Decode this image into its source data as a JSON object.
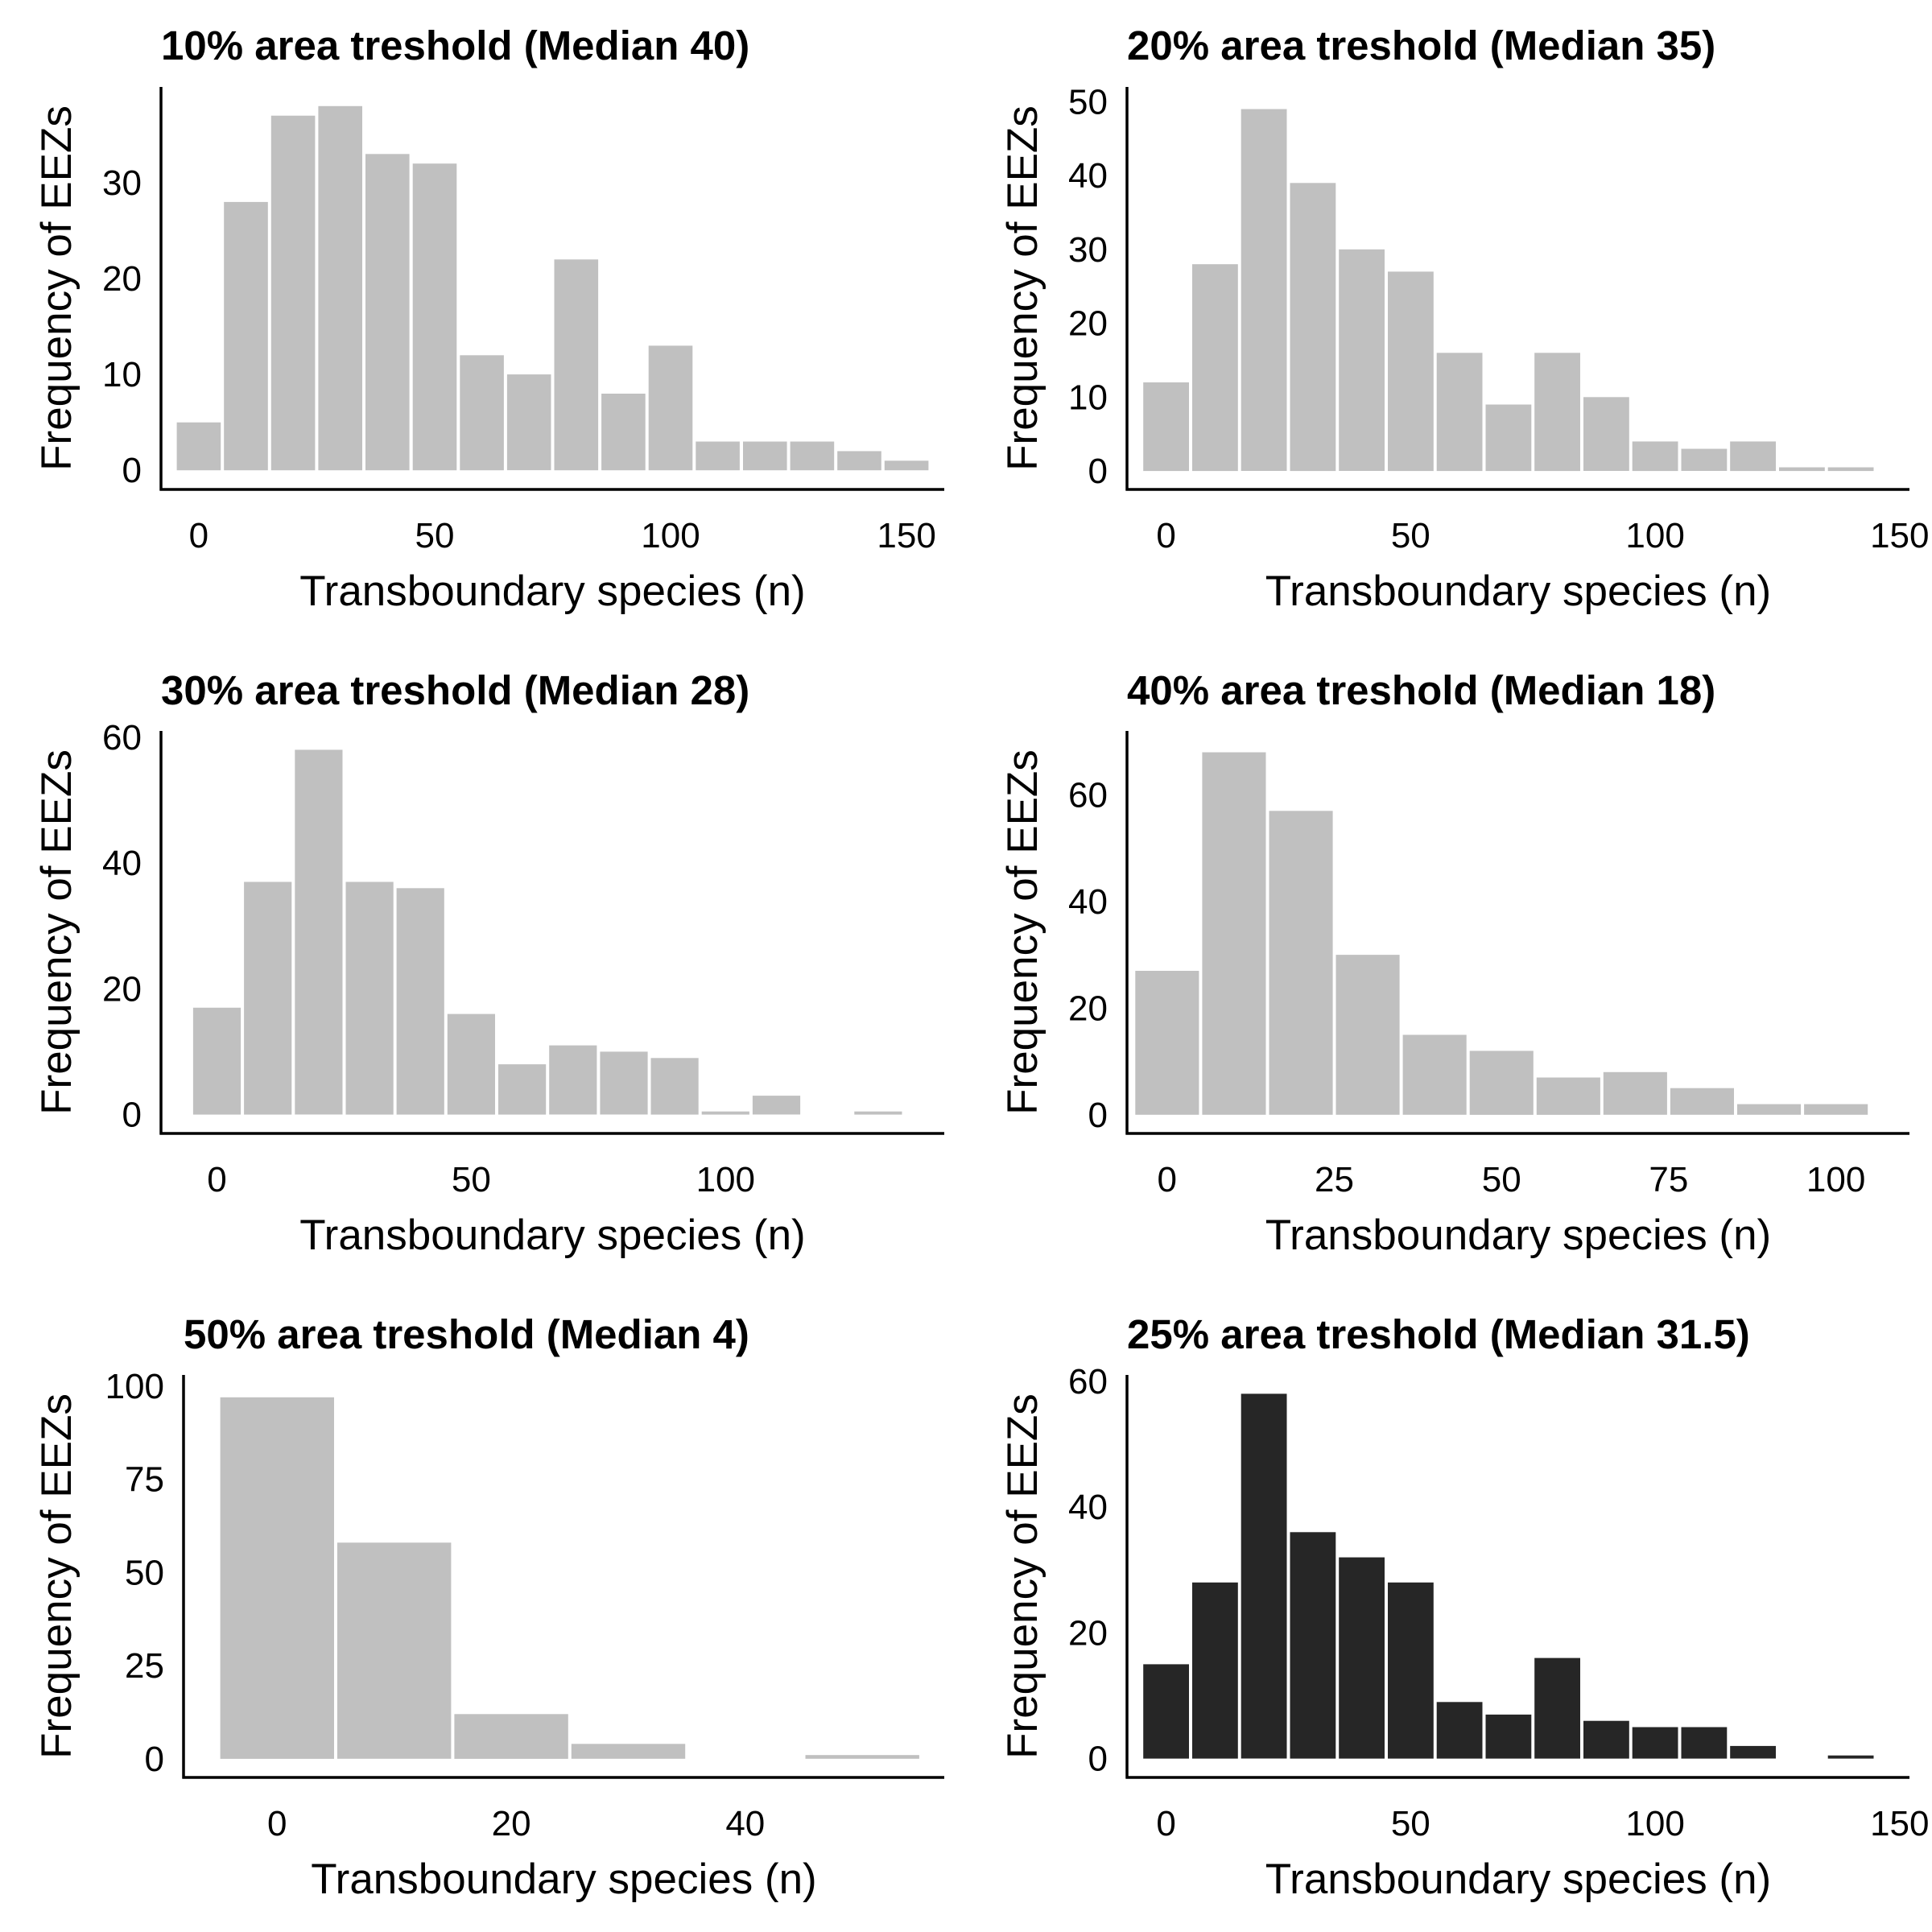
{
  "figure": {
    "colors": {
      "bar_default": "#c0c0c0",
      "bar_highlight": "#262626",
      "axis": "#000000",
      "background": "#ffffff"
    }
  },
  "chart_data": [
    {
      "type": "bar",
      "title": "10% area treshold (Median 40)",
      "xlabel": "Transboundary species (n)",
      "ylabel": "Frequency of EEZs",
      "bin_width": 10,
      "bin_centers": [
        0,
        10,
        20,
        30,
        40,
        50,
        60,
        70,
        80,
        90,
        100,
        110,
        120,
        130,
        140,
        150
      ],
      "values": [
        5,
        28,
        37,
        38,
        33,
        32,
        12,
        10,
        22,
        8,
        13,
        3,
        3,
        3,
        2,
        1
      ],
      "xticks": [
        0,
        50,
        100,
        150
      ],
      "yticks": [
        0,
        10,
        20,
        30
      ],
      "xlim": [
        -8,
        158
      ],
      "ylim": [
        -2,
        40
      ],
      "color": "#c0c0c0"
    },
    {
      "type": "bar",
      "title": "20% area treshold (Median 35)",
      "xlabel": "Transboundary species (n)",
      "ylabel": "Frequency of EEZs",
      "bin_width": 10,
      "bin_centers": [
        0,
        10,
        20,
        30,
        40,
        50,
        60,
        70,
        80,
        90,
        100,
        110,
        120,
        130,
        140
      ],
      "values": [
        12,
        28,
        49,
        39,
        30,
        27,
        16,
        9,
        16,
        10,
        4,
        3,
        4,
        0.5,
        0.5
      ],
      "xticks": [
        0,
        50,
        100,
        150
      ],
      "yticks": [
        0,
        10,
        20,
        30,
        40,
        50
      ],
      "xlim": [
        -8,
        152
      ],
      "ylim": [
        -2.5,
        52
      ],
      "color": "#c0c0c0"
    },
    {
      "type": "bar",
      "title": "30% area treshold (Median 28)",
      "xlabel": "Transboundary species (n)",
      "ylabel": "Frequency of EEZs",
      "bin_width": 10,
      "bin_centers": [
        0,
        10,
        20,
        30,
        40,
        50,
        60,
        70,
        80,
        90,
        100,
        110,
        120,
        130
      ],
      "values": [
        17,
        37,
        58,
        37,
        36,
        16,
        8,
        11,
        10,
        9,
        0.5,
        3,
        0,
        0.5
      ],
      "xticks": [
        0,
        50,
        100
      ],
      "yticks": [
        0,
        20,
        40,
        60
      ],
      "xlim": [
        -11,
        143
      ],
      "ylim": [
        -3,
        61
      ],
      "color": "#c0c0c0"
    },
    {
      "type": "bar",
      "title": "40% area treshold (Median 18)",
      "xlabel": "Transboundary species (n)",
      "ylabel": "Frequency of EEZs",
      "bin_width": 10,
      "bin_centers": [
        0,
        10,
        20,
        30,
        40,
        50,
        60,
        70,
        80,
        90,
        100
      ],
      "values": [
        27,
        68,
        57,
        30,
        15,
        12,
        7,
        8,
        5,
        2,
        2
      ],
      "xticks": [
        0,
        25,
        50,
        75,
        100
      ],
      "yticks": [
        0,
        20,
        40,
        60
      ],
      "xlim": [
        -6,
        111
      ],
      "ylim": [
        -3.5,
        72
      ],
      "color": "#c0c0c0"
    },
    {
      "type": "bar",
      "title": "50% area treshold (Median 4)",
      "xlabel": "Transboundary species (n)",
      "ylabel": "Frequency of EEZs",
      "bin_width": 10,
      "bin_centers": [
        0,
        10,
        20,
        30,
        40,
        50
      ],
      "values": [
        97,
        58,
        12,
        4,
        0,
        1
      ],
      "xticks": [
        0,
        20,
        40
      ],
      "yticks": [
        0,
        25,
        50,
        75,
        100
      ],
      "xlim": [
        -8,
        57
      ],
      "ylim": [
        -5,
        103
      ],
      "color": "#c0c0c0"
    },
    {
      "type": "bar",
      "title": "25% area treshold (Median 31.5)",
      "xlabel": "Transboundary species (n)",
      "ylabel": "Frequency of EEZs",
      "bin_width": 10,
      "bin_centers": [
        0,
        10,
        20,
        30,
        40,
        50,
        60,
        70,
        80,
        90,
        100,
        110,
        120,
        130,
        140
      ],
      "values": [
        15,
        28,
        58,
        36,
        32,
        28,
        9,
        7,
        16,
        6,
        5,
        5,
        2,
        0,
        0.5
      ],
      "xticks": [
        0,
        50,
        100,
        150
      ],
      "yticks": [
        0,
        20,
        40,
        60
      ],
      "xlim": [
        -8,
        152
      ],
      "ylim": [
        -3,
        61
      ],
      "color": "#262626"
    }
  ]
}
